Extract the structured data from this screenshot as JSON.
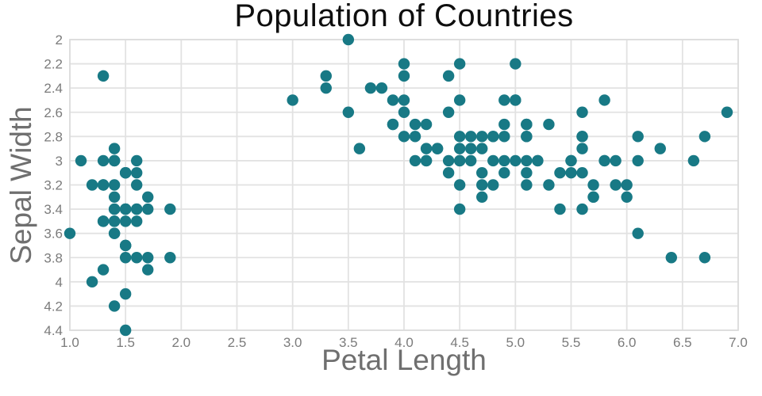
{
  "window": {
    "background": "#ffffff"
  },
  "chart_data": {
    "type": "scatter",
    "title": "Population of Countries",
    "xlabel": "Petal Length",
    "ylabel": "Sepal Width",
    "xlim": [
      1.0,
      7.0
    ],
    "ylim": [
      2.0,
      4.4
    ],
    "y_axis_reversed": true,
    "grid": true,
    "legend": "none",
    "x_tick_values": [
      1.0,
      1.5,
      2.0,
      2.5,
      3.0,
      3.5,
      4.0,
      4.5,
      5.0,
      5.5,
      6.0,
      6.5,
      7.0
    ],
    "x_tick_labels": [
      "1.0",
      "1.5",
      "2.0",
      "2.5",
      "3.0",
      "3.5",
      "4.0",
      "4.5",
      "5.0",
      "5.5",
      "6.0",
      "6.5",
      "7.0"
    ],
    "y_tick_values": [
      2.0,
      2.2,
      2.4,
      2.6,
      2.8,
      3.0,
      3.2,
      3.4,
      3.6,
      3.8,
      4.0,
      4.2,
      4.4
    ],
    "y_tick_labels": [
      "2",
      "2.2",
      "2.4",
      "2.6",
      "2.8",
      "3",
      "3.2",
      "3.4",
      "3.6",
      "3.8",
      "4",
      "4.2",
      "4.4"
    ],
    "colors": {
      "marker": "#187985",
      "grid": "#e2e2e2",
      "border": "#dcdcdc",
      "tick_label": "#7b7b7b",
      "axis_title": "#6f6f6f",
      "title": "#0e0e0e",
      "background": "#ffffff"
    },
    "marker": {
      "shape": "circle",
      "radius": 7.2
    },
    "points": [
      [
        1.4,
        3.5
      ],
      [
        1.4,
        3.0
      ],
      [
        1.3,
        3.2
      ],
      [
        1.5,
        3.1
      ],
      [
        1.4,
        3.6
      ],
      [
        1.7,
        3.9
      ],
      [
        1.4,
        3.4
      ],
      [
        1.5,
        3.4
      ],
      [
        1.4,
        2.9
      ],
      [
        1.5,
        3.1
      ],
      [
        1.5,
        3.7
      ],
      [
        1.6,
        3.4
      ],
      [
        1.4,
        3.0
      ],
      [
        1.1,
        3.0
      ],
      [
        1.2,
        4.0
      ],
      [
        1.5,
        4.4
      ],
      [
        1.3,
        3.9
      ],
      [
        1.4,
        3.5
      ],
      [
        1.7,
        3.8
      ],
      [
        1.5,
        3.8
      ],
      [
        1.7,
        3.4
      ],
      [
        1.5,
        3.7
      ],
      [
        1.0,
        3.6
      ],
      [
        1.7,
        3.3
      ],
      [
        1.9,
        3.4
      ],
      [
        1.6,
        3.0
      ],
      [
        1.6,
        3.4
      ],
      [
        1.5,
        3.5
      ],
      [
        1.4,
        3.4
      ],
      [
        1.6,
        3.2
      ],
      [
        1.6,
        3.1
      ],
      [
        1.5,
        3.4
      ],
      [
        1.5,
        4.1
      ],
      [
        1.4,
        4.2
      ],
      [
        1.5,
        3.1
      ],
      [
        1.2,
        3.2
      ],
      [
        1.3,
        3.5
      ],
      [
        1.4,
        3.6
      ],
      [
        1.3,
        3.0
      ],
      [
        1.5,
        3.4
      ],
      [
        1.3,
        3.5
      ],
      [
        1.3,
        2.3
      ],
      [
        1.3,
        3.2
      ],
      [
        1.6,
        3.5
      ],
      [
        1.9,
        3.8
      ],
      [
        1.4,
        3.0
      ],
      [
        1.6,
        3.8
      ],
      [
        1.4,
        3.2
      ],
      [
        1.5,
        3.7
      ],
      [
        1.4,
        3.3
      ],
      [
        4.7,
        3.2
      ],
      [
        4.5,
        3.2
      ],
      [
        4.9,
        3.1
      ],
      [
        4.0,
        2.3
      ],
      [
        4.6,
        2.8
      ],
      [
        4.5,
        2.8
      ],
      [
        4.7,
        3.3
      ],
      [
        3.3,
        2.4
      ],
      [
        4.6,
        2.9
      ],
      [
        3.9,
        2.7
      ],
      [
        3.5,
        2.0
      ],
      [
        4.2,
        3.0
      ],
      [
        4.0,
        2.2
      ],
      [
        4.7,
        2.9
      ],
      [
        3.6,
        2.9
      ],
      [
        4.4,
        3.1
      ],
      [
        4.5,
        3.0
      ],
      [
        4.1,
        2.7
      ],
      [
        4.5,
        2.2
      ],
      [
        3.9,
        2.5
      ],
      [
        4.8,
        3.2
      ],
      [
        4.0,
        2.8
      ],
      [
        4.9,
        2.5
      ],
      [
        4.7,
        2.8
      ],
      [
        4.3,
        2.9
      ],
      [
        4.4,
        3.0
      ],
      [
        4.8,
        2.8
      ],
      [
        5.0,
        3.0
      ],
      [
        4.5,
        2.9
      ],
      [
        3.5,
        2.6
      ],
      [
        3.8,
        2.4
      ],
      [
        3.7,
        2.4
      ],
      [
        3.9,
        2.7
      ],
      [
        5.1,
        2.7
      ],
      [
        4.5,
        3.0
      ],
      [
        4.5,
        3.4
      ],
      [
        4.7,
        3.1
      ],
      [
        4.4,
        2.3
      ],
      [
        4.1,
        3.0
      ],
      [
        4.0,
        2.5
      ],
      [
        4.4,
        2.6
      ],
      [
        4.6,
        3.0
      ],
      [
        4.0,
        2.6
      ],
      [
        3.3,
        2.3
      ],
      [
        4.2,
        2.7
      ],
      [
        4.2,
        3.0
      ],
      [
        4.2,
        2.9
      ],
      [
        4.3,
        2.9
      ],
      [
        3.0,
        2.5
      ],
      [
        4.1,
        2.8
      ],
      [
        6.0,
        3.3
      ],
      [
        5.1,
        2.7
      ],
      [
        5.9,
        3.0
      ],
      [
        5.6,
        2.9
      ],
      [
        5.8,
        3.0
      ],
      [
        6.6,
        3.0
      ],
      [
        4.5,
        2.5
      ],
      [
        6.3,
        2.9
      ],
      [
        5.8,
        2.5
      ],
      [
        6.1,
        3.6
      ],
      [
        5.1,
        3.2
      ],
      [
        5.3,
        2.7
      ],
      [
        5.5,
        3.0
      ],
      [
        5.0,
        2.5
      ],
      [
        5.1,
        2.8
      ],
      [
        5.3,
        3.2
      ],
      [
        5.5,
        3.0
      ],
      [
        6.7,
        3.8
      ],
      [
        6.9,
        2.6
      ],
      [
        5.0,
        2.2
      ],
      [
        5.7,
        3.2
      ],
      [
        4.9,
        2.8
      ],
      [
        6.7,
        2.8
      ],
      [
        4.9,
        2.7
      ],
      [
        5.7,
        3.3
      ],
      [
        6.0,
        3.2
      ],
      [
        4.8,
        2.8
      ],
      [
        4.9,
        3.0
      ],
      [
        5.6,
        2.8
      ],
      [
        5.8,
        3.0
      ],
      [
        6.1,
        2.8
      ],
      [
        6.4,
        3.8
      ],
      [
        5.6,
        2.8
      ],
      [
        5.1,
        2.8
      ],
      [
        5.6,
        2.6
      ],
      [
        6.1,
        3.0
      ],
      [
        5.6,
        3.4
      ],
      [
        5.5,
        3.1
      ],
      [
        4.8,
        3.0
      ],
      [
        5.4,
        3.1
      ],
      [
        5.6,
        3.1
      ],
      [
        5.1,
        3.1
      ],
      [
        5.1,
        2.7
      ],
      [
        5.9,
        3.2
      ],
      [
        5.7,
        3.3
      ],
      [
        5.2,
        3.0
      ],
      [
        5.0,
        2.5
      ],
      [
        5.2,
        3.0
      ],
      [
        5.4,
        3.4
      ],
      [
        5.1,
        3.0
      ]
    ]
  }
}
